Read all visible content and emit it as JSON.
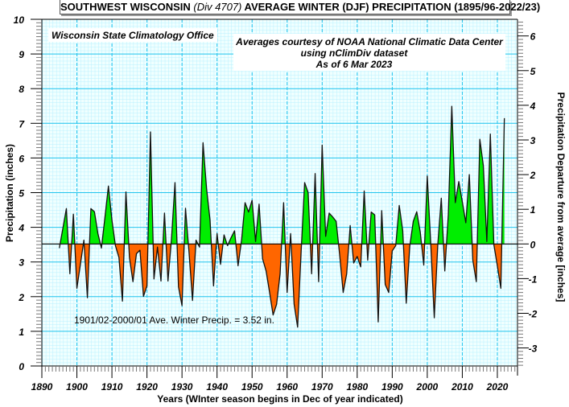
{
  "title": {
    "main": "SOUTHWEST WISCONSIN",
    "division": "(Div 4707)",
    "rest": "AVERAGE WINTER (DJF) PRECIPITATION (1895/96-2022/23)"
  },
  "credits": {
    "office": "Wisconsin State Climatology Office",
    "line1": "Averages courtesy of NOAA National Climatic Data Center",
    "line2": "using nClimDiv dataset",
    "line3": "As of 6 Mar 2023"
  },
  "average_note": "1901/02-2000/01 Ave. Winter Precip. = 3.52 in.",
  "colors": {
    "above": "#00ee00",
    "below": "#ff6600",
    "grid_major": "#22c4ee",
    "grid_minor": "#b8f0ff",
    "background": "#e8ffff"
  },
  "chart_data": {
    "type": "area",
    "title": "SOUTHWEST WISCONSIN (Div 4707) AVERAGE WINTER (DJF) PRECIPITATION (1895/96-2022/23)",
    "xlabel": "Years (WInter season begins in Dec of year indicated)",
    "ylabel": "Precipitation  (inches)",
    "ylabel_right": "Precipitation Departure from average [inches]",
    "xlim": [
      1890,
      2025.75
    ],
    "ylim": [
      0,
      10
    ],
    "average": 3.52,
    "grid": true,
    "x_ticks": [
      "1890",
      "1900",
      "1910",
      "1920",
      "1930",
      "1940",
      "1950",
      "1960",
      "1970",
      "1980",
      "1990",
      "2000",
      "2010",
      "2020"
    ],
    "y_ticks": [
      "0",
      "1",
      "2",
      "3",
      "4",
      "5",
      "6",
      "7",
      "8",
      "9",
      "10"
    ],
    "y_right_ticks": [
      "-3",
      "-2",
      "-1",
      "0",
      "1",
      "2",
      "3",
      "4",
      "5",
      "6"
    ],
    "start_year": 1895,
    "values": [
      3.4,
      3.97,
      4.54,
      2.66,
      4.38,
      2.24,
      2.93,
      3.63,
      1.97,
      4.54,
      4.45,
      3.82,
      3.4,
      4.28,
      5.19,
      4.21,
      3.47,
      3.13,
      1.87,
      5.02,
      3.13,
      2.43,
      3.24,
      3.34,
      2.01,
      2.31,
      6.75,
      2.51,
      3.43,
      2.45,
      4.41,
      2.45,
      3.67,
      5.29,
      2.28,
      1.74,
      4.55,
      3.28,
      1.89,
      3.63,
      3.43,
      6.44,
      5.13,
      4.21,
      2.31,
      3.82,
      2.93,
      3.78,
      3.47,
      3.7,
      3.9,
      2.89,
      3.63,
      4.71,
      4.44,
      4.78,
      3.59,
      4.67,
      3.09,
      2.74,
      2.12,
      1.47,
      1.78,
      2.66,
      4.71,
      2.12,
      3.82,
      1.78,
      1.12,
      3.3,
      5.29,
      5.0,
      2.66,
      5.55,
      2.43,
      6.37,
      3.74,
      4.41,
      4.3,
      4.17,
      3.2,
      2.12,
      2.66,
      4.05,
      2.97,
      3.16,
      2.86,
      5.05,
      3.05,
      4.44,
      4.36,
      1.27,
      4.48,
      2.35,
      2.12,
      3.32,
      3.47,
      4.63,
      3.9,
      1.81,
      3.45,
      4.17,
      4.45,
      3.86,
      2.91,
      5.48,
      3.51,
      1.39,
      3.5,
      4.84,
      2.74,
      4.36,
      7.49,
      4.71,
      5.32,
      4.74,
      4.13,
      5.52,
      3.05,
      2.43,
      6.54,
      5.78,
      3.59,
      6.69,
      3.5,
      2.89,
      2.24,
      7.15
    ]
  }
}
